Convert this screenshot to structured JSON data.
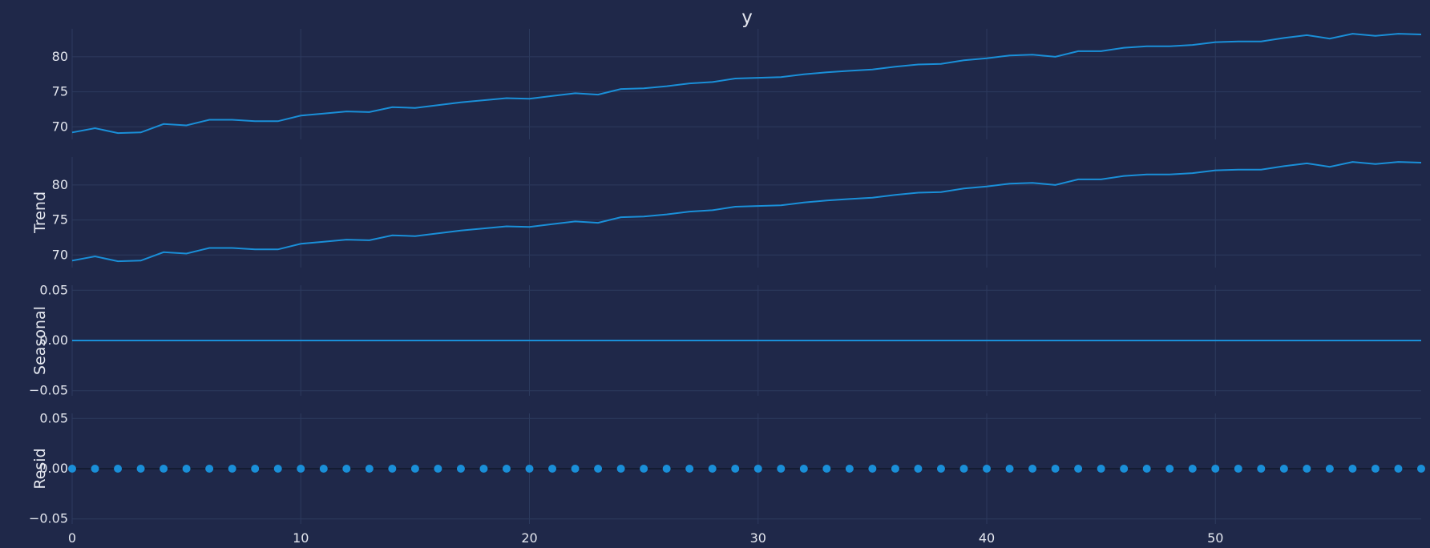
{
  "theme": {
    "background": "#1f2849",
    "grid": "#2d3a5e",
    "line": "#1a8fd8",
    "marker": "#1a8fd8",
    "text": "#e4e7ef"
  },
  "chart_data": {
    "type": "line",
    "title": "y",
    "x": [
      0,
      1,
      2,
      3,
      4,
      5,
      6,
      7,
      8,
      9,
      10,
      11,
      12,
      13,
      14,
      15,
      16,
      17,
      18,
      19,
      20,
      21,
      22,
      23,
      24,
      25,
      26,
      27,
      28,
      29,
      30,
      31,
      32,
      33,
      34,
      35,
      36,
      37,
      38,
      39,
      40,
      41,
      42,
      43,
      44,
      45,
      46,
      47,
      48,
      49,
      50,
      51,
      52,
      53,
      54,
      55,
      56,
      57,
      58,
      59
    ],
    "xlim": [
      0,
      59
    ],
    "xticks": [
      0,
      10,
      20,
      30,
      40,
      50
    ],
    "grid": true,
    "panels": [
      {
        "name": "observed",
        "ylabel": "",
        "kind": "line",
        "ylim": [
          68.2,
          84.0
        ],
        "yticks": [
          70,
          75,
          80
        ],
        "ytick_labels": [
          "70",
          "75",
          "80"
        ],
        "values": [
          69.2,
          69.8,
          69.1,
          69.2,
          70.4,
          70.2,
          71.0,
          71.0,
          70.8,
          70.8,
          71.6,
          71.9,
          72.2,
          72.1,
          72.8,
          72.7,
          73.1,
          73.5,
          73.8,
          74.1,
          74.0,
          74.4,
          74.8,
          74.6,
          75.4,
          75.5,
          75.8,
          76.2,
          76.4,
          76.9,
          77.0,
          77.1,
          77.5,
          77.8,
          78.0,
          78.2,
          78.6,
          78.9,
          79.0,
          79.5,
          79.8,
          80.2,
          80.3,
          80.0,
          80.8,
          80.8,
          81.3,
          81.5,
          81.5,
          81.7,
          82.1,
          82.2,
          82.2,
          82.7,
          83.1,
          82.6,
          83.3,
          83.0,
          83.3,
          83.2
        ]
      },
      {
        "name": "trend",
        "ylabel": "Trend",
        "kind": "line",
        "ylim": [
          68.2,
          84.0
        ],
        "yticks": [
          70,
          75,
          80
        ],
        "ytick_labels": [
          "70",
          "75",
          "80"
        ],
        "values": [
          69.2,
          69.8,
          69.1,
          69.2,
          70.4,
          70.2,
          71.0,
          71.0,
          70.8,
          70.8,
          71.6,
          71.9,
          72.2,
          72.1,
          72.8,
          72.7,
          73.1,
          73.5,
          73.8,
          74.1,
          74.0,
          74.4,
          74.8,
          74.6,
          75.4,
          75.5,
          75.8,
          76.2,
          76.4,
          76.9,
          77.0,
          77.1,
          77.5,
          77.8,
          78.0,
          78.2,
          78.6,
          78.9,
          79.0,
          79.5,
          79.8,
          80.2,
          80.3,
          80.0,
          80.8,
          80.8,
          81.3,
          81.5,
          81.5,
          81.7,
          82.1,
          82.2,
          82.2,
          82.7,
          83.1,
          82.6,
          83.3,
          83.0,
          83.3,
          83.2
        ]
      },
      {
        "name": "seasonal",
        "ylabel": "Seasonal",
        "kind": "line",
        "ylim": [
          -0.055,
          0.055
        ],
        "yticks": [
          -0.05,
          0.0,
          0.05
        ],
        "ytick_labels": [
          "−0.05",
          "0.00",
          "0.05"
        ],
        "constant": 0
      },
      {
        "name": "resid",
        "ylabel": "Resid",
        "kind": "scatter",
        "ylim": [
          -0.055,
          0.055
        ],
        "yticks": [
          -0.05,
          0.0,
          0.05
        ],
        "ytick_labels": [
          "−0.05",
          "0.00",
          "0.05"
        ],
        "constant": 0,
        "baseline": 0
      }
    ]
  }
}
